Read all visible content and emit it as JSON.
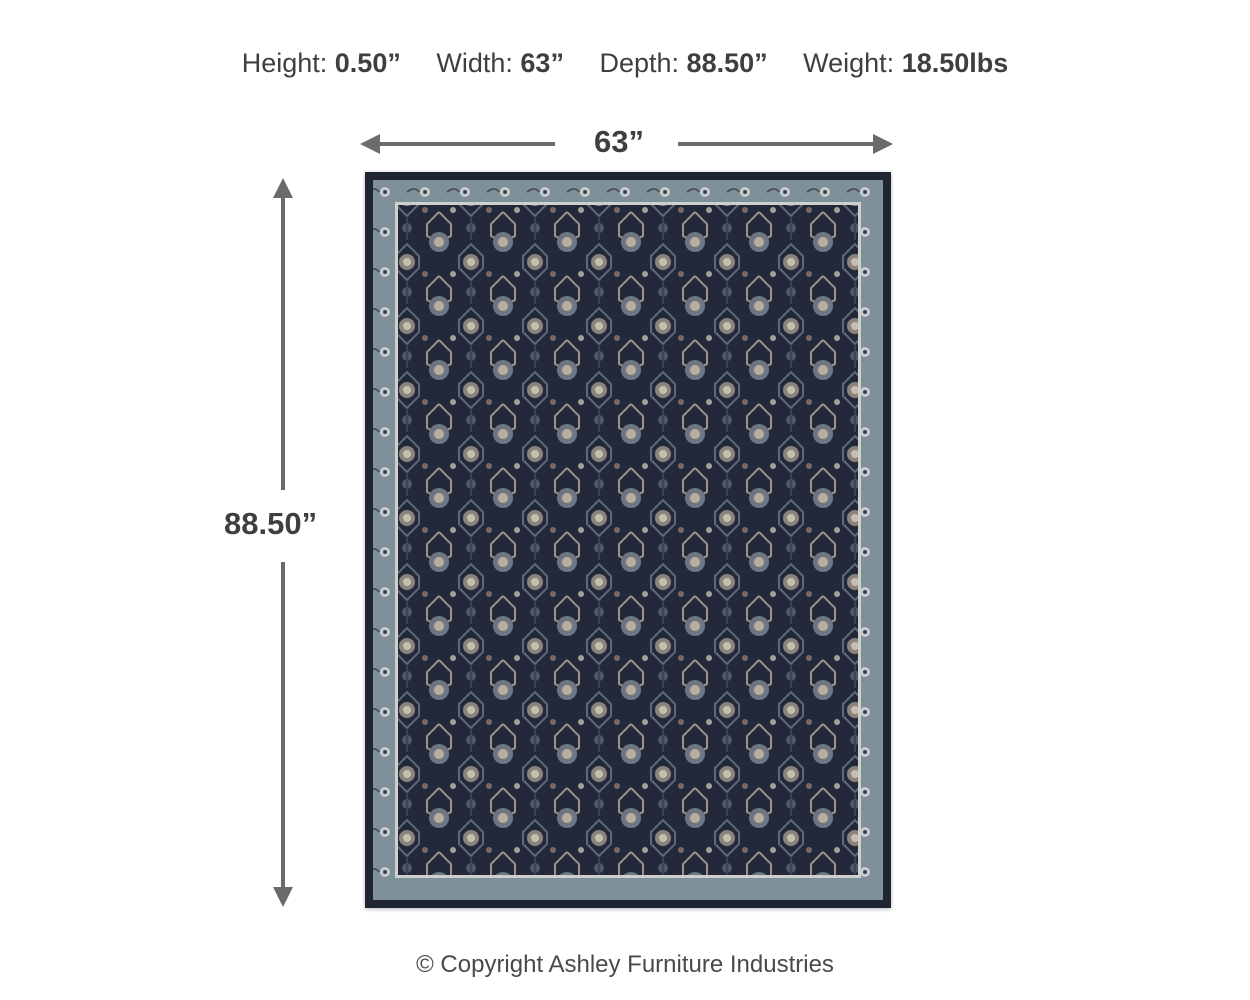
{
  "specs": [
    {
      "label": "Height:",
      "value": "0.50”"
    },
    {
      "label": "Width:",
      "value": "63”"
    },
    {
      "label": "Depth:",
      "value": "88.50”"
    },
    {
      "label": "Weight:",
      "value": "18.50lbs"
    }
  ],
  "dimensions": {
    "width_label": "63”",
    "height_label": "88.50”"
  },
  "product": {
    "image": "area-rug",
    "colors": {
      "field": "#23293a",
      "border": "#7e909a",
      "accent": "#b9ada0"
    }
  },
  "footer": {
    "copyright": "© Copyright Ashley Furniture Industries"
  }
}
